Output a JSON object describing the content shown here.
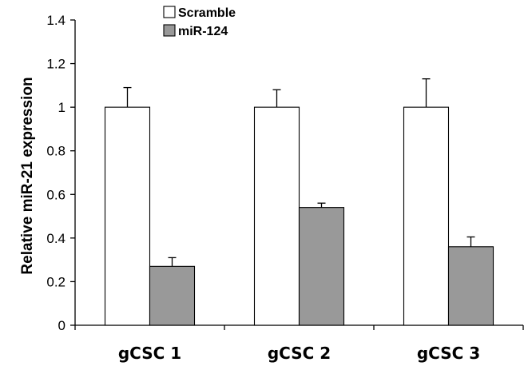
{
  "chart_data": {
    "type": "bar",
    "categories": [
      "gCSC 1",
      "gCSC 2",
      "gCSC 3"
    ],
    "series": [
      {
        "name": "Scramble",
        "values": [
          1.0,
          1.0,
          1.0
        ],
        "errors": [
          0.09,
          0.08,
          0.13
        ],
        "color": "#ffffff"
      },
      {
        "name": "miR-124",
        "values": [
          0.27,
          0.54,
          0.36
        ],
        "errors": [
          0.04,
          0.02,
          0.045
        ],
        "color": "#999999"
      }
    ],
    "ylabel": "Relative miR-21 expression",
    "ylim": [
      0,
      1.4
    ],
    "yticks": [
      0,
      0.2,
      0.4,
      0.6,
      0.8,
      1,
      1.2,
      1.4
    ],
    "ytick_labels": [
      "0",
      "0.2",
      "0.4",
      "0.6",
      "0.8",
      "1",
      "1.2",
      "1.4"
    ],
    "grid": false,
    "legend_position": "top-center"
  }
}
